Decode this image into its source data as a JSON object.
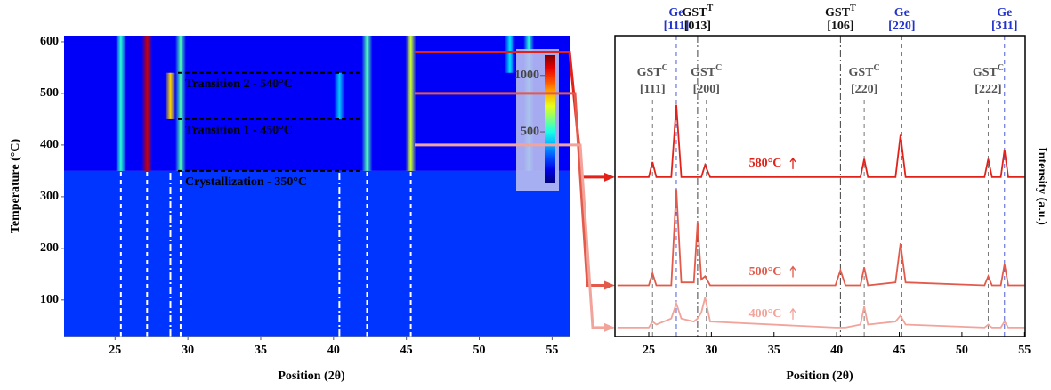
{
  "chart_data": [
    {
      "type": "heatmap",
      "xlabel": "Position (2θ)",
      "ylabel": "Temperature (°C)",
      "xlim": [
        21.5,
        56.2
      ],
      "ylim": [
        29,
        612
      ],
      "xticks": [
        25,
        30,
        35,
        40,
        45,
        50,
        55
      ],
      "yticks": [
        100,
        200,
        300,
        400,
        500,
        600
      ],
      "clim": [
        50,
        1180
      ],
      "cticks": [
        500,
        1000
      ],
      "background": [
        {
          "ymin": 29,
          "ymax": 350,
          "value": 250
        },
        {
          "ymin": 350,
          "ymax": 612,
          "value": 185
        }
      ],
      "streaks": [
        {
          "x": 25.4,
          "ymin": 350,
          "ymax": 612,
          "intensity": 520
        },
        {
          "x": 27.2,
          "ymin": 350,
          "ymax": 612,
          "intensity": 1100
        },
        {
          "x": 28.8,
          "ymin": 450,
          "ymax": 540,
          "intensity": 800
        },
        {
          "x": 29.5,
          "ymin": 350,
          "ymax": 612,
          "intensity": 560
        },
        {
          "x": 40.4,
          "ymin": 450,
          "ymax": 540,
          "intensity": 420
        },
        {
          "x": 42.3,
          "ymin": 350,
          "ymax": 612,
          "intensity": 560
        },
        {
          "x": 45.3,
          "ymin": 350,
          "ymax": 612,
          "intensity": 700
        },
        {
          "x": 52.1,
          "ymin": 540,
          "ymax": 612,
          "intensity": 450
        },
        {
          "x": 53.4,
          "ymin": 350,
          "ymax": 612,
          "intensity": 520
        }
      ],
      "phase_lines": [
        {
          "x": 25.4,
          "ymax": 350,
          "dash": "dashed"
        },
        {
          "x": 27.2,
          "ymax": 350,
          "dash": "dashed"
        },
        {
          "x": 28.8,
          "ymax": 350,
          "dash": "dashdot"
        },
        {
          "x": 29.5,
          "ymax": 350,
          "dash": "dashed"
        },
        {
          "x": 40.4,
          "ymax": 350,
          "dash": "dashdot"
        },
        {
          "x": 42.3,
          "ymax": 350,
          "dash": "dashed"
        },
        {
          "x": 45.3,
          "ymax": 350,
          "dash": "dashed"
        }
      ],
      "transitions": [
        {
          "label": "Transition 2 -  540°C",
          "y": 540
        },
        {
          "label": "Transition 1 - 450°C",
          "y": 450
        },
        {
          "label": "Crystallization - 350°C",
          "y": 350
        }
      ]
    },
    {
      "type": "line",
      "xlabel": "Position (2θ)",
      "ylabel": "Intensity (a.u.)",
      "xlim": [
        22.3,
        55.05
      ],
      "ylim": [
        0,
        100
      ],
      "xticks": [
        25,
        30,
        35,
        40,
        45,
        50,
        55
      ],
      "x": [
        22.5,
        25.0,
        25.3,
        25.6,
        26.8,
        27.2,
        27.6,
        28.6,
        28.9,
        29.2,
        29.5,
        29.9,
        39.9,
        40.3,
        40.7,
        41.9,
        42.2,
        42.5,
        44.7,
        45.1,
        45.5,
        51.8,
        52.1,
        52.4,
        53.1,
        53.4,
        53.7,
        55.0
      ],
      "series": [
        {
          "name": "580°C",
          "temperature": 580,
          "color": "#e32119",
          "values": [
            53,
            53,
            58,
            53,
            53,
            77,
            53,
            53,
            53,
            53,
            57,
            53,
            53,
            53,
            53,
            53,
            59,
            53,
            53,
            67,
            53,
            53,
            59,
            53,
            53,
            62,
            53,
            53
          ]
        },
        {
          "name": "500°C",
          "temperature": 500,
          "color": "#e35a4a",
          "values": [
            17,
            17,
            21,
            17,
            17,
            49,
            18,
            18,
            38,
            19,
            20,
            17,
            17,
            22,
            17,
            17,
            23,
            17,
            18,
            31,
            18,
            17,
            20,
            17,
            17,
            24,
            17,
            17
          ]
        },
        {
          "name": "400°C",
          "temperature": 400,
          "color": "#f2a39a",
          "values": [
            3,
            3,
            5,
            4,
            6,
            11,
            6,
            5,
            6,
            8,
            13,
            5,
            3,
            3,
            3,
            4,
            10,
            4,
            5,
            7,
            4,
            3,
            4,
            3,
            3,
            5,
            3,
            3
          ]
        }
      ],
      "references": {
        "ge": {
          "color": "#2233cc",
          "dash": "dashed",
          "items": [
            {
              "name": "Ge",
              "hkl": "[111]",
              "x": 27.2
            },
            {
              "name": "Ge",
              "hkl": "[220]",
              "x": 45.2
            },
            {
              "name": "Ge",
              "hkl": "[311]",
              "x": 53.4
            }
          ]
        },
        "gst_t": {
          "color": "#111111",
          "dash": "dashdot",
          "items": [
            {
              "name": "GST",
              "sup": "T",
              "hkl": "[013]",
              "x": 28.9
            },
            {
              "name": "GST",
              "sup": "T",
              "hkl": "[106]",
              "x": 40.3
            }
          ]
        },
        "gst_c": {
          "color": "#555555",
          "dash": "dashed",
          "items": [
            {
              "name": "GST",
              "sup": "C",
              "hkl": "[111]",
              "x": 25.3
            },
            {
              "name": "GST",
              "sup": "C",
              "hkl": "[200]",
              "x": 29.6
            },
            {
              "name": "GST",
              "sup": "C",
              "hkl": "[220]",
              "x": 42.2
            },
            {
              "name": "GST",
              "sup": "C",
              "hkl": "[222]",
              "x": 52.1
            }
          ]
        }
      }
    }
  ]
}
